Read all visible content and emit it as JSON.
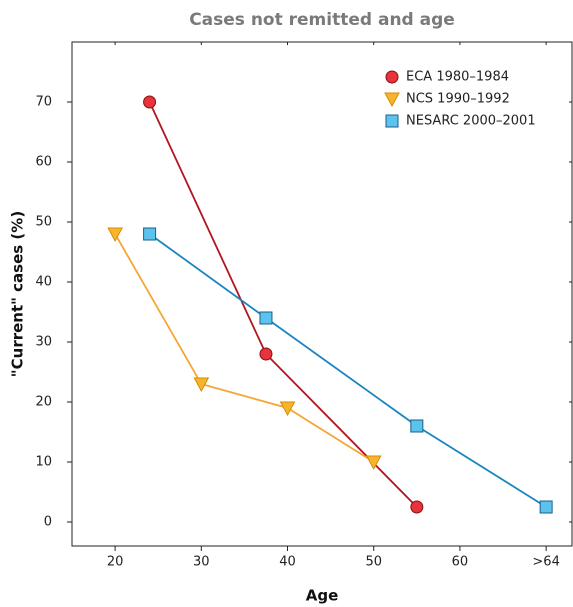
{
  "chart_data": {
    "type": "line",
    "title": "Cases not remitted and age",
    "xlabel": "Age",
    "ylabel": "\"Current\" cases (%)",
    "xlim": [
      15,
      73
    ],
    "ylim": [
      -4,
      80
    ],
    "xticks": [
      20,
      30,
      40,
      50,
      60,
      {
        "value": 70,
        "label": ">64"
      }
    ],
    "yticks": [
      0,
      10,
      20,
      30,
      40,
      50,
      60,
      70
    ],
    "legend": "upper right",
    "series": [
      {
        "name": "ECA 1980–1984",
        "color": "#b3151f",
        "marker": "circle",
        "marker_color": "#e8323c",
        "x": [
          24,
          37.5,
          55
        ],
        "values": [
          70,
          28,
          2.5
        ]
      },
      {
        "name": "NCS 1990–1992",
        "color": "#f5a634",
        "marker": "triangle-down",
        "marker_color": "#f7b52e",
        "x": [
          20,
          30,
          40,
          50
        ],
        "values": [
          48,
          23,
          19,
          10
        ]
      },
      {
        "name": "NESARC 2000–2001",
        "color": "#1a86c0",
        "marker": "square",
        "marker_color": "#5cc3ee",
        "x": [
          24,
          37.5,
          55,
          70
        ],
        "values": [
          48,
          34,
          16,
          2.5
        ]
      }
    ]
  }
}
